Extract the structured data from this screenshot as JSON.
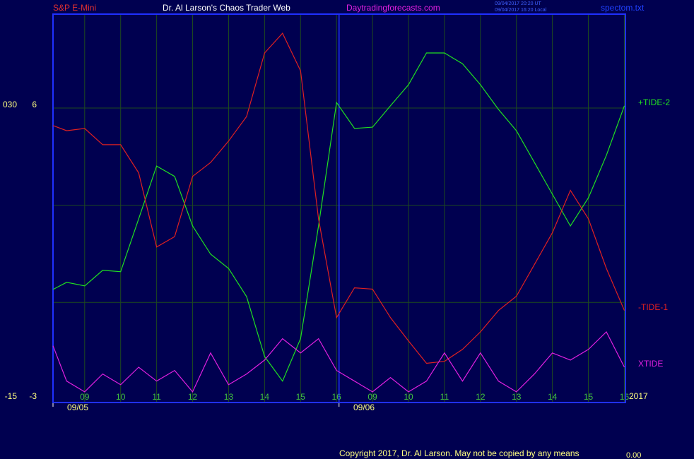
{
  "chart_data": {
    "type": "line",
    "title": "Dr. Al Larson's Chaos Trader Web",
    "annotations": [
      "S&P E-Mini",
      "Daytradingforecasts.com",
      "09/04/2017 20:20 UT",
      "09/04/2017 16:20 Local",
      "spectom.txt",
      "09/05",
      "09/06",
      "2017",
      "Copyright 2017, Dr. Al Larson. May not be copied by any means",
      "0.00"
    ],
    "x": [
      -0.88,
      -0.5,
      0,
      0.5,
      1,
      1.5,
      2,
      2.5,
      3,
      3.5,
      4,
      4.5,
      5,
      5.5,
      6,
      6.5,
      7,
      7.5,
      8,
      8.5,
      9,
      9.5,
      10,
      10.5,
      11,
      11.5,
      12,
      12.5,
      13,
      13.5,
      14,
      14.5,
      15
    ],
    "xlim": [
      -0.88,
      15.03
    ],
    "xticks": [
      {
        "value": 0,
        "label": "09"
      },
      {
        "value": 1,
        "label": "10"
      },
      {
        "value": 2,
        "label": "11"
      },
      {
        "value": 3,
        "label": "12"
      },
      {
        "value": 4,
        "label": "13"
      },
      {
        "value": 5,
        "label": "14"
      },
      {
        "value": 6,
        "label": "15"
      },
      {
        "value": 7,
        "label": "16"
      },
      {
        "value": 8,
        "label": "09"
      },
      {
        "value": 9,
        "label": "10"
      },
      {
        "value": 10,
        "label": "11"
      },
      {
        "value": 11,
        "label": "12"
      },
      {
        "value": 12,
        "label": "13"
      },
      {
        "value": 13,
        "label": "14"
      },
      {
        "value": 14,
        "label": "15"
      },
      {
        "value": 15,
        "label": "16"
      }
    ],
    "day_breaks": [
      -0.88,
      7.07
    ],
    "ylim": [
      -3.09,
      8.9
    ],
    "yticks": [
      6,
      -3
    ],
    "ygrid": [
      6,
      3,
      0
    ],
    "y2lim": [
      -15.44,
      44.5
    ],
    "y2ticks": [
      {
        "value": 30,
        "label": "030"
      },
      -15
    ],
    "grid": true,
    "series": [
      {
        "name": "+TIDE-2",
        "color": "#20e020",
        "values": [
          0.4,
          0.62,
          0.51,
          0.99,
          0.95,
          2.58,
          4.21,
          3.89,
          2.36,
          1.49,
          1.05,
          0.18,
          -1.67,
          -2.43,
          -1.12,
          2.36,
          6.17,
          5.37,
          5.41,
          6.07,
          6.72,
          7.7,
          7.7,
          7.37,
          6.72,
          5.96,
          5.3,
          4.32,
          3.34,
          2.36,
          3.23,
          4.54,
          6.07
        ]
      },
      {
        "name": "-TIDE-1",
        "color": "#e02020",
        "values": [
          5.46,
          5.3,
          5.37,
          4.87,
          4.87,
          4.0,
          1.71,
          2.03,
          3.89,
          4.32,
          4.98,
          5.74,
          7.7,
          8.31,
          7.15,
          2.58,
          -0.47,
          0.45,
          0.41,
          -0.47,
          -1.19,
          -1.88,
          -1.82,
          -1.45,
          -0.91,
          -0.25,
          0.19,
          1.17,
          2.15,
          3.46,
          2.58,
          1.05,
          -0.25
        ]
      },
      {
        "name": "XTIDE",
        "color": "#e020e0",
        "values": [
          -1.34,
          -2.43,
          -2.76,
          -2.21,
          -2.54,
          -2.0,
          -2.43,
          -2.1,
          -2.76,
          -1.56,
          -2.54,
          -2.21,
          -1.78,
          -1.12,
          -1.56,
          -1.12,
          -2.1,
          -2.43,
          -2.76,
          -2.32,
          -2.76,
          -2.43,
          -1.56,
          -2.43,
          -1.56,
          -2.43,
          -2.76,
          -2.21,
          -1.56,
          -1.78,
          -1.45,
          -0.91,
          -2.0
        ]
      }
    ]
  }
}
